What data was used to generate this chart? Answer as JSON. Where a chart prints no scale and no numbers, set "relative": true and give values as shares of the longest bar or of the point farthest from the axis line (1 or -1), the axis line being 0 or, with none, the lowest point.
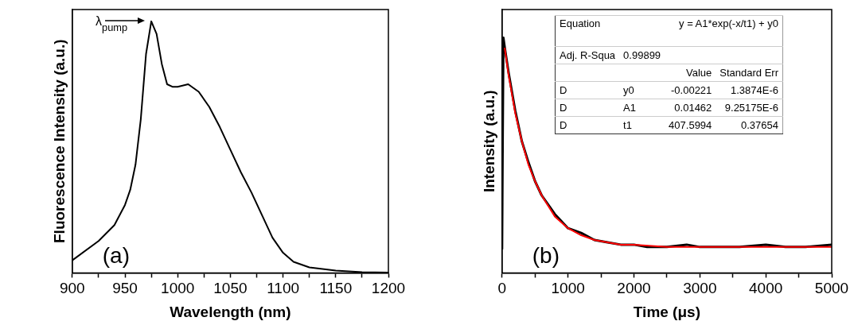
{
  "chart_data": [
    {
      "type": "line",
      "xlabel": "Wavelength (nm)",
      "ylabel": "Fluorescence Intensity (a.u.)",
      "relative": true,
      "xlim": [
        900,
        1200
      ],
      "xticks": [
        900,
        {
          "value": 925,
          "label": null
        },
        950,
        {
          "value": 975,
          "label": null
        },
        1000,
        {
          "value": 1025,
          "label": null
        },
        1050,
        {
          "value": 1075,
          "label": null
        },
        1100,
        {
          "value": 1125,
          "label": null
        },
        1150,
        {
          "value": 1175,
          "label": null
        },
        1200
      ],
      "grid": false,
      "legend": false,
      "marker": "none",
      "line_style": "solid",
      "annotations": [
        {
          "text": "λ$_{pump}$",
          "x": 975,
          "y": 1
        },
        "(a)"
      ],
      "series": [
        {
          "color": "#000000",
          "x": [
            900,
            925,
            940,
            950,
            955,
            960,
            965,
            970,
            975,
            980,
            985,
            990,
            995,
            1000,
            1010,
            1020,
            1030,
            1040,
            1050,
            1060,
            1070,
            1080,
            1090,
            1100,
            1110,
            1125,
            1150,
            1175,
            1200
          ],
          "values": [
            0.05,
            0.127,
            0.19,
            0.27,
            0.33,
            0.43,
            0.61,
            0.87,
            1.0,
            0.95,
            0.83,
            0.75,
            0.74,
            0.74,
            0.75,
            0.72,
            0.66,
            0.58,
            0.49,
            0.4,
            0.32,
            0.23,
            0.14,
            0.08,
            0.044,
            0.022,
            0.009,
            0.003,
            0.001
          ]
        }
      ]
    },
    {
      "type": "line",
      "xlabel": "Time (μs)",
      "ylabel": "Intensity (a.u.)",
      "relative": true,
      "xlim": [
        0,
        5000
      ],
      "xticks": [
        0,
        {
          "value": 500,
          "label": null
        },
        1000,
        {
          "value": 1500,
          "label": null
        },
        2000,
        {
          "value": 2500,
          "label": null
        },
        3000,
        {
          "value": 3500,
          "label": null
        },
        4000,
        {
          "value": 4500,
          "label": null
        },
        5000
      ],
      "grid": false,
      "legend": false,
      "marker": "none",
      "line_style": "solid",
      "annotations": [
        "(b)",
        "Equation",
        "y = A1*exp(-x/t1) + y0",
        "Adj. R-Squa",
        "0.99899",
        "Value",
        "Standard Err",
        "D",
        "y0",
        "-0.00221",
        "1.3874E-6",
        "D",
        "A1",
        "0.01462",
        "9.25175E-6",
        "D",
        "t1",
        "407.5994",
        "0.37654"
      ],
      "series": [
        {
          "color": "#000000",
          "x": [
            0,
            10,
            20,
            40,
            100,
            200,
            300,
            400,
            500,
            600,
            800,
            1000,
            1200,
            1400,
            1600,
            1800,
            2000,
            2200,
            2500,
            2800,
            3000,
            3300,
            3600,
            4000,
            4300,
            4600,
            5000
          ],
          "values": [
            0.1,
            0.6,
            1.0,
            0.96,
            0.85,
            0.69,
            0.56,
            0.47,
            0.39,
            0.33,
            0.25,
            0.19,
            0.17,
            0.14,
            0.13,
            0.12,
            0.12,
            0.11,
            0.11,
            0.12,
            0.11,
            0.11,
            0.11,
            0.12,
            0.11,
            0.11,
            0.12
          ]
        },
        {
          "color": "#ff0000",
          "x": [
            40,
            100,
            200,
            300,
            400,
            500,
            600,
            800,
            1000,
            1200,
            1400,
            1600,
            1800,
            2000,
            2500,
            3000,
            4000,
            5000
          ],
          "values": [
            0.957,
            0.84,
            0.68,
            0.56,
            0.46,
            0.39,
            0.33,
            0.24,
            0.19,
            0.16,
            0.14,
            0.13,
            0.12,
            0.12,
            0.11,
            0.11,
            0.11,
            0.11
          ]
        }
      ]
    }
  ]
}
